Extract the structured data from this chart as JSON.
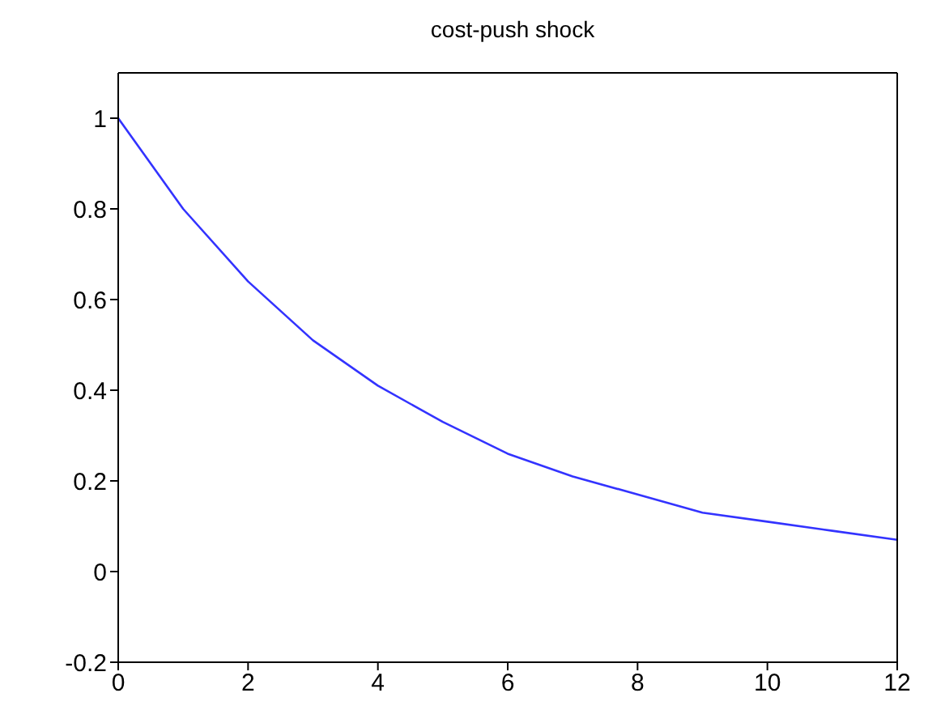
{
  "chart_data": {
    "type": "line",
    "title": "cost-push shock",
    "x": [
      0,
      1,
      2,
      3,
      4,
      5,
      6,
      7,
      8,
      9,
      10,
      11,
      12
    ],
    "series": [
      {
        "color": "#3333ff",
        "values": [
          1,
          0.8,
          0.64,
          0.51,
          0.41,
          0.33,
          0.26,
          0.21,
          0.17,
          0.13,
          0.11,
          0.09,
          0.07
        ]
      }
    ],
    "xlim": [
      0,
      12
    ],
    "xticks": [
      0,
      2,
      4,
      6,
      8,
      10,
      12
    ],
    "ylim": [
      -0.2,
      1.1
    ],
    "yticks": [
      -0.2,
      0,
      0.2,
      0.4,
      0.6,
      0.8,
      1
    ],
    "grid": false,
    "marker": "none",
    "line_style": "solid"
  }
}
